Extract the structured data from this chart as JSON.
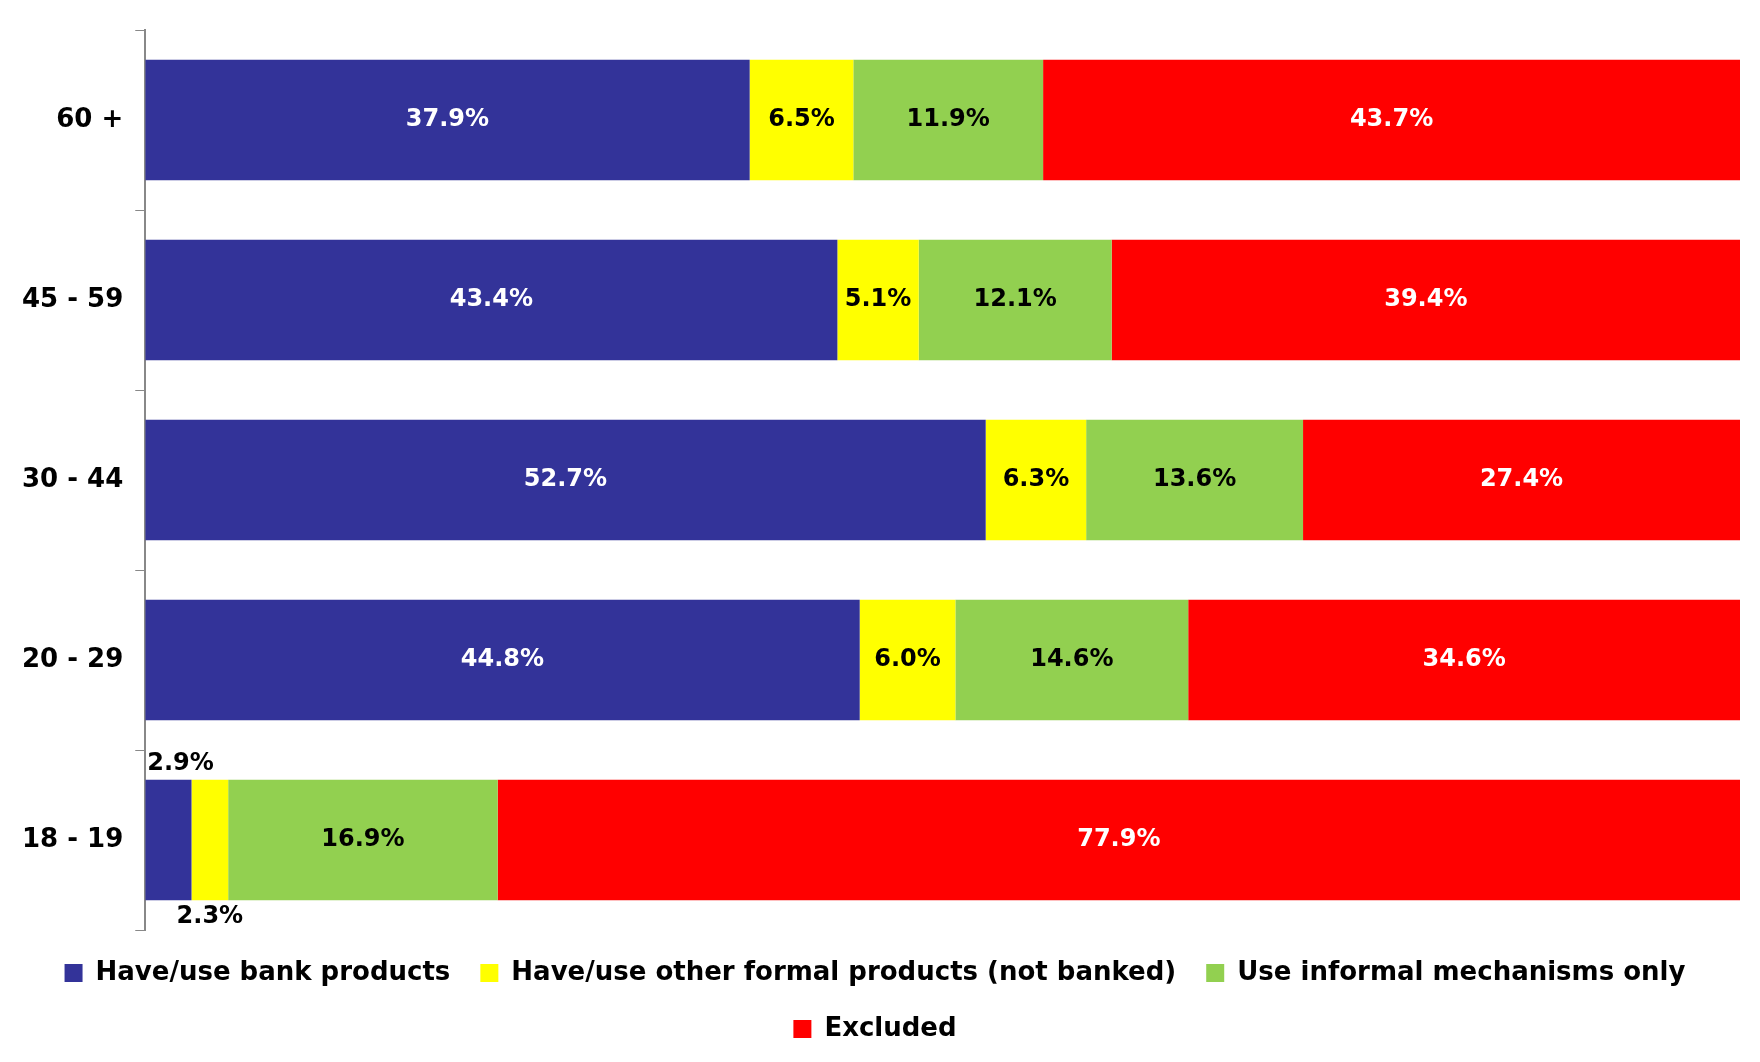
{
  "chart_data": {
    "type": "bar",
    "orientation": "horizontal",
    "stacked": true,
    "grid": false,
    "legend": "bottom",
    "categories": [
      "60 +",
      "45 - 59",
      "30 - 44",
      "20 - 29",
      "18 - 19"
    ],
    "series": [
      {
        "name": "Have/use bank products",
        "color": "#333399",
        "values": [
          37.9,
          43.4,
          52.7,
          44.8,
          2.9
        ],
        "value_labels": [
          "37.9%",
          "43.4%",
          "52.7%",
          "44.8%",
          "2.9%"
        ]
      },
      {
        "name": "Have/use other formal products (not banked)",
        "color": "#ffff00",
        "values": [
          6.5,
          5.1,
          6.3,
          6.0,
          2.3
        ],
        "value_labels": [
          "6.5%",
          "5.1%",
          "6.3%",
          "6.0%",
          "2.3%"
        ]
      },
      {
        "name": "Use informal mechanisms only",
        "color": "#92d050",
        "values": [
          11.9,
          12.1,
          13.6,
          14.6,
          16.9
        ],
        "value_labels": [
          "11.9%",
          "12.1%",
          "13.6%",
          "14.6%",
          "16.9%"
        ]
      },
      {
        "name": "Excluded",
        "color": "#ff0000",
        "values": [
          43.7,
          39.4,
          27.4,
          34.6,
          77.9
        ],
        "value_labels": [
          "43.7%",
          "39.4%",
          "27.4%",
          "34.6%",
          "77.9%"
        ]
      }
    ]
  }
}
